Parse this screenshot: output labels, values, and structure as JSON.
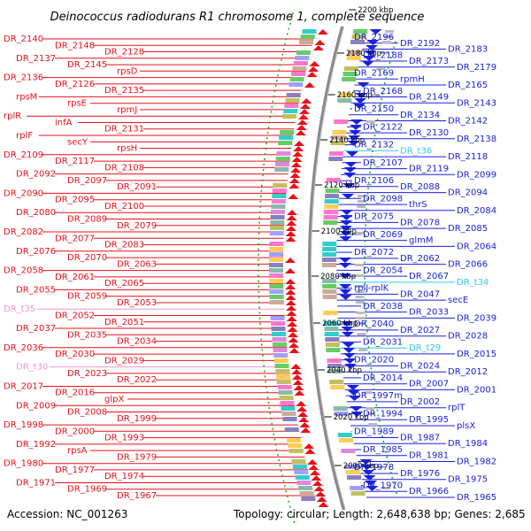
{
  "title": "Deinococcus radiodurans R1 chromosome 1, complete sequence",
  "footer": {
    "accession": "Accession: NC_001263",
    "summary": "Topology: circular; Length: 2,648,638 bp; Genes: 2,685"
  },
  "colors": {
    "forward": "#e8101a",
    "reverse": "#1a22d8",
    "rna_forward": "#ee99cc",
    "rna_reverse": "#30c8ee",
    "backbone": "#8a8a8a",
    "tick": "#22aa22"
  },
  "ticks": [
    {
      "label": "2200 kbp"
    },
    {
      "label": "2180 kbp"
    },
    {
      "label": "2160 kbp"
    },
    {
      "label": "2140 kbp"
    },
    {
      "label": "2120 kbp"
    },
    {
      "label": "2100 kbp"
    },
    {
      "label": "2080 kbp"
    },
    {
      "label": "2060 kbp"
    },
    {
      "label": "2040 kbp"
    },
    {
      "label": "2020 kbp"
    },
    {
      "label": "2000 kbp"
    }
  ],
  "left_labels": [
    {
      "text": "DR_2140",
      "kind": "cds"
    },
    {
      "text": "DR_2148",
      "kind": "cds"
    },
    {
      "text": "DR_2128",
      "kind": "cds"
    },
    {
      "text": "DR_2137",
      "kind": "cds"
    },
    {
      "text": "DR_2145",
      "kind": "cds"
    },
    {
      "text": "rpsD",
      "kind": "cds"
    },
    {
      "text": "DR_2136",
      "kind": "cds"
    },
    {
      "text": "DR_2126",
      "kind": "cds"
    },
    {
      "text": "DR_2135",
      "kind": "cds"
    },
    {
      "text": "rpsM",
      "kind": "cds"
    },
    {
      "text": "rpsE",
      "kind": "cds"
    },
    {
      "text": "rpmJ",
      "kind": "cds"
    },
    {
      "text": "rplR",
      "kind": "cds"
    },
    {
      "text": "infA",
      "kind": "cds"
    },
    {
      "text": "DR_2131",
      "kind": "cds"
    },
    {
      "text": "rplF",
      "kind": "cds"
    },
    {
      "text": "secY",
      "kind": "cds"
    },
    {
      "text": "rpsH",
      "kind": "cds"
    },
    {
      "text": "DR_2109",
      "kind": "cds"
    },
    {
      "text": "DR_2117",
      "kind": "cds"
    },
    {
      "text": "DR_2108",
      "kind": "cds"
    },
    {
      "text": "DR_2092",
      "kind": "cds"
    },
    {
      "text": "DR_2097",
      "kind": "cds"
    },
    {
      "text": "DR_2091",
      "kind": "cds"
    },
    {
      "text": "DR_2090",
      "kind": "cds"
    },
    {
      "text": "DR_2095",
      "kind": "cds"
    },
    {
      "text": "DR_2100",
      "kind": "cds"
    },
    {
      "text": "DR_2080",
      "kind": "cds"
    },
    {
      "text": "DR_2089",
      "kind": "cds"
    },
    {
      "text": "DR_2079",
      "kind": "cds"
    },
    {
      "text": "DR_2082",
      "kind": "cds"
    },
    {
      "text": "DR_2077",
      "kind": "cds"
    },
    {
      "text": "DR_2083",
      "kind": "cds"
    },
    {
      "text": "DR_2076",
      "kind": "cds"
    },
    {
      "text": "DR_2070",
      "kind": "cds"
    },
    {
      "text": "DR_2063",
      "kind": "cds"
    },
    {
      "text": "DR_2058",
      "kind": "cds"
    },
    {
      "text": "DR_2061",
      "kind": "cds"
    },
    {
      "text": "DR_2065",
      "kind": "cds"
    },
    {
      "text": "DR_2055",
      "kind": "cds"
    },
    {
      "text": "DR_2059",
      "kind": "cds"
    },
    {
      "text": "DR_2053",
      "kind": "cds"
    },
    {
      "text": "DR_t35",
      "kind": "rna"
    },
    {
      "text": "DR_2052",
      "kind": "cds"
    },
    {
      "text": "DR_2051",
      "kind": "cds"
    },
    {
      "text": "DR_2037",
      "kind": "cds"
    },
    {
      "text": "DR_2035",
      "kind": "cds"
    },
    {
      "text": "DR_2034",
      "kind": "cds"
    },
    {
      "text": "DR_2036",
      "kind": "cds"
    },
    {
      "text": "DR_2030",
      "kind": "cds"
    },
    {
      "text": "DR_2029",
      "kind": "cds"
    },
    {
      "text": "DR_t30",
      "kind": "rna"
    },
    {
      "text": "DR_2023",
      "kind": "cds"
    },
    {
      "text": "DR_2022",
      "kind": "cds"
    },
    {
      "text": "DR_2017",
      "kind": "cds"
    },
    {
      "text": "DR_2016",
      "kind": "cds"
    },
    {
      "text": "glpX",
      "kind": "cds"
    },
    {
      "text": "DR_2009",
      "kind": "cds"
    },
    {
      "text": "DR_2008",
      "kind": "cds"
    },
    {
      "text": "DR_1999",
      "kind": "cds"
    },
    {
      "text": "DR_1998",
      "kind": "cds"
    },
    {
      "text": "DR_2000",
      "kind": "cds"
    },
    {
      "text": "DR_1993",
      "kind": "cds"
    },
    {
      "text": "DR_1992",
      "kind": "cds"
    },
    {
      "text": "rpsA",
      "kind": "cds"
    },
    {
      "text": "DR_1979",
      "kind": "cds"
    },
    {
      "text": "DR_1980",
      "kind": "cds"
    },
    {
      "text": "DR_1977",
      "kind": "cds"
    },
    {
      "text": "DR_1974",
      "kind": "cds"
    },
    {
      "text": "DR_1971",
      "kind": "cds"
    },
    {
      "text": "DR_1969",
      "kind": "cds"
    },
    {
      "text": "DR_1967",
      "kind": "cds"
    }
  ],
  "right_labels": [
    {
      "text": "DR_2196",
      "kind": "cds"
    },
    {
      "text": "DR_2192",
      "kind": "cds"
    },
    {
      "text": "DR_2183",
      "kind": "cds"
    },
    {
      "text": "DR_2188",
      "kind": "cds"
    },
    {
      "text": "DR_2173",
      "kind": "cds"
    },
    {
      "text": "DR_2179",
      "kind": "cds"
    },
    {
      "text": "DR_2169",
      "kind": "cds"
    },
    {
      "text": "rpmH",
      "kind": "cds"
    },
    {
      "text": "DR_2165",
      "kind": "cds"
    },
    {
      "text": "DR_2168",
      "kind": "cds"
    },
    {
      "text": "DR_2149",
      "kind": "cds"
    },
    {
      "text": "DR_2143",
      "kind": "cds"
    },
    {
      "text": "DR_2150",
      "kind": "cds"
    },
    {
      "text": "DR_2134",
      "kind": "cds"
    },
    {
      "text": "DR_2142",
      "kind": "cds"
    },
    {
      "text": "DR_2122",
      "kind": "cds"
    },
    {
      "text": "DR_2130",
      "kind": "cds"
    },
    {
      "text": "DR_2138",
      "kind": "cds"
    },
    {
      "text": "DR_2132",
      "kind": "cds"
    },
    {
      "text": "DR_t36",
      "kind": "rna"
    },
    {
      "text": "DR_2118",
      "kind": "cds"
    },
    {
      "text": "DR_2107",
      "kind": "cds"
    },
    {
      "text": "DR_2119",
      "kind": "cds"
    },
    {
      "text": "DR_2099",
      "kind": "cds"
    },
    {
      "text": "DR_2106",
      "kind": "cds"
    },
    {
      "text": "DR_2088",
      "kind": "cds"
    },
    {
      "text": "DR_2094",
      "kind": "cds"
    },
    {
      "text": "DR_2098",
      "kind": "cds"
    },
    {
      "text": "thrS",
      "kind": "cds"
    },
    {
      "text": "DR_2084",
      "kind": "cds"
    },
    {
      "text": "DR_2075",
      "kind": "cds"
    },
    {
      "text": "DR_2078",
      "kind": "cds"
    },
    {
      "text": "DR_2085",
      "kind": "cds"
    },
    {
      "text": "DR_2069",
      "kind": "cds"
    },
    {
      "text": "glmM",
      "kind": "cds"
    },
    {
      "text": "DR_2064",
      "kind": "cds"
    },
    {
      "text": "DR_2072",
      "kind": "cds"
    },
    {
      "text": "DR_2062",
      "kind": "cds"
    },
    {
      "text": "DR_2066",
      "kind": "cds"
    },
    {
      "text": "DR_2054",
      "kind": "cds"
    },
    {
      "text": "DR_2067",
      "kind": "cds"
    },
    {
      "text": "DR_t34",
      "kind": "rna"
    },
    {
      "text": "rplJ-rplK",
      "kind": "cds"
    },
    {
      "text": "DR_2047",
      "kind": "cds"
    },
    {
      "text": "secE",
      "kind": "cds"
    },
    {
      "text": "DR_2038",
      "kind": "cds"
    },
    {
      "text": "DR_2033",
      "kind": "cds"
    },
    {
      "text": "DR_2039",
      "kind": "cds"
    },
    {
      "text": "DR_2040",
      "kind": "cds"
    },
    {
      "text": "DR_2027",
      "kind": "cds"
    },
    {
      "text": "DR_2028",
      "kind": "cds"
    },
    {
      "text": "DR_2031",
      "kind": "cds"
    },
    {
      "text": "DR_t29",
      "kind": "rna"
    },
    {
      "text": "DR_2015",
      "kind": "cds"
    },
    {
      "text": "DR_2020",
      "kind": "cds"
    },
    {
      "text": "DR_2024",
      "kind": "cds"
    },
    {
      "text": "DR_2012",
      "kind": "cds"
    },
    {
      "text": "DR_2014",
      "kind": "cds"
    },
    {
      "text": "DR_2007",
      "kind": "cds"
    },
    {
      "text": "DR_2001",
      "kind": "cds"
    },
    {
      "text": "DR_1997m",
      "kind": "cds"
    },
    {
      "text": "DR_2002",
      "kind": "cds"
    },
    {
      "text": "rplT",
      "kind": "cds"
    },
    {
      "text": "DR_1994",
      "kind": "cds"
    },
    {
      "text": "DR_1995",
      "kind": "cds"
    },
    {
      "text": "plsX",
      "kind": "cds"
    },
    {
      "text": "DR_1989",
      "kind": "cds"
    },
    {
      "text": "DR_1987",
      "kind": "cds"
    },
    {
      "text": "DR_1984",
      "kind": "cds"
    },
    {
      "text": "DR_1985",
      "kind": "cds"
    },
    {
      "text": "DR_1981",
      "kind": "cds"
    },
    {
      "text": "DR_1982",
      "kind": "cds"
    },
    {
      "text": "DR_1978",
      "kind": "cds"
    },
    {
      "text": "DR_1976",
      "kind": "cds"
    },
    {
      "text": "DR_1975",
      "kind": "cds"
    },
    {
      "text": "DR_1970",
      "kind": "cds"
    },
    {
      "text": "DR_1966",
      "kind": "cds"
    },
    {
      "text": "DR_1965",
      "kind": "cds"
    }
  ]
}
